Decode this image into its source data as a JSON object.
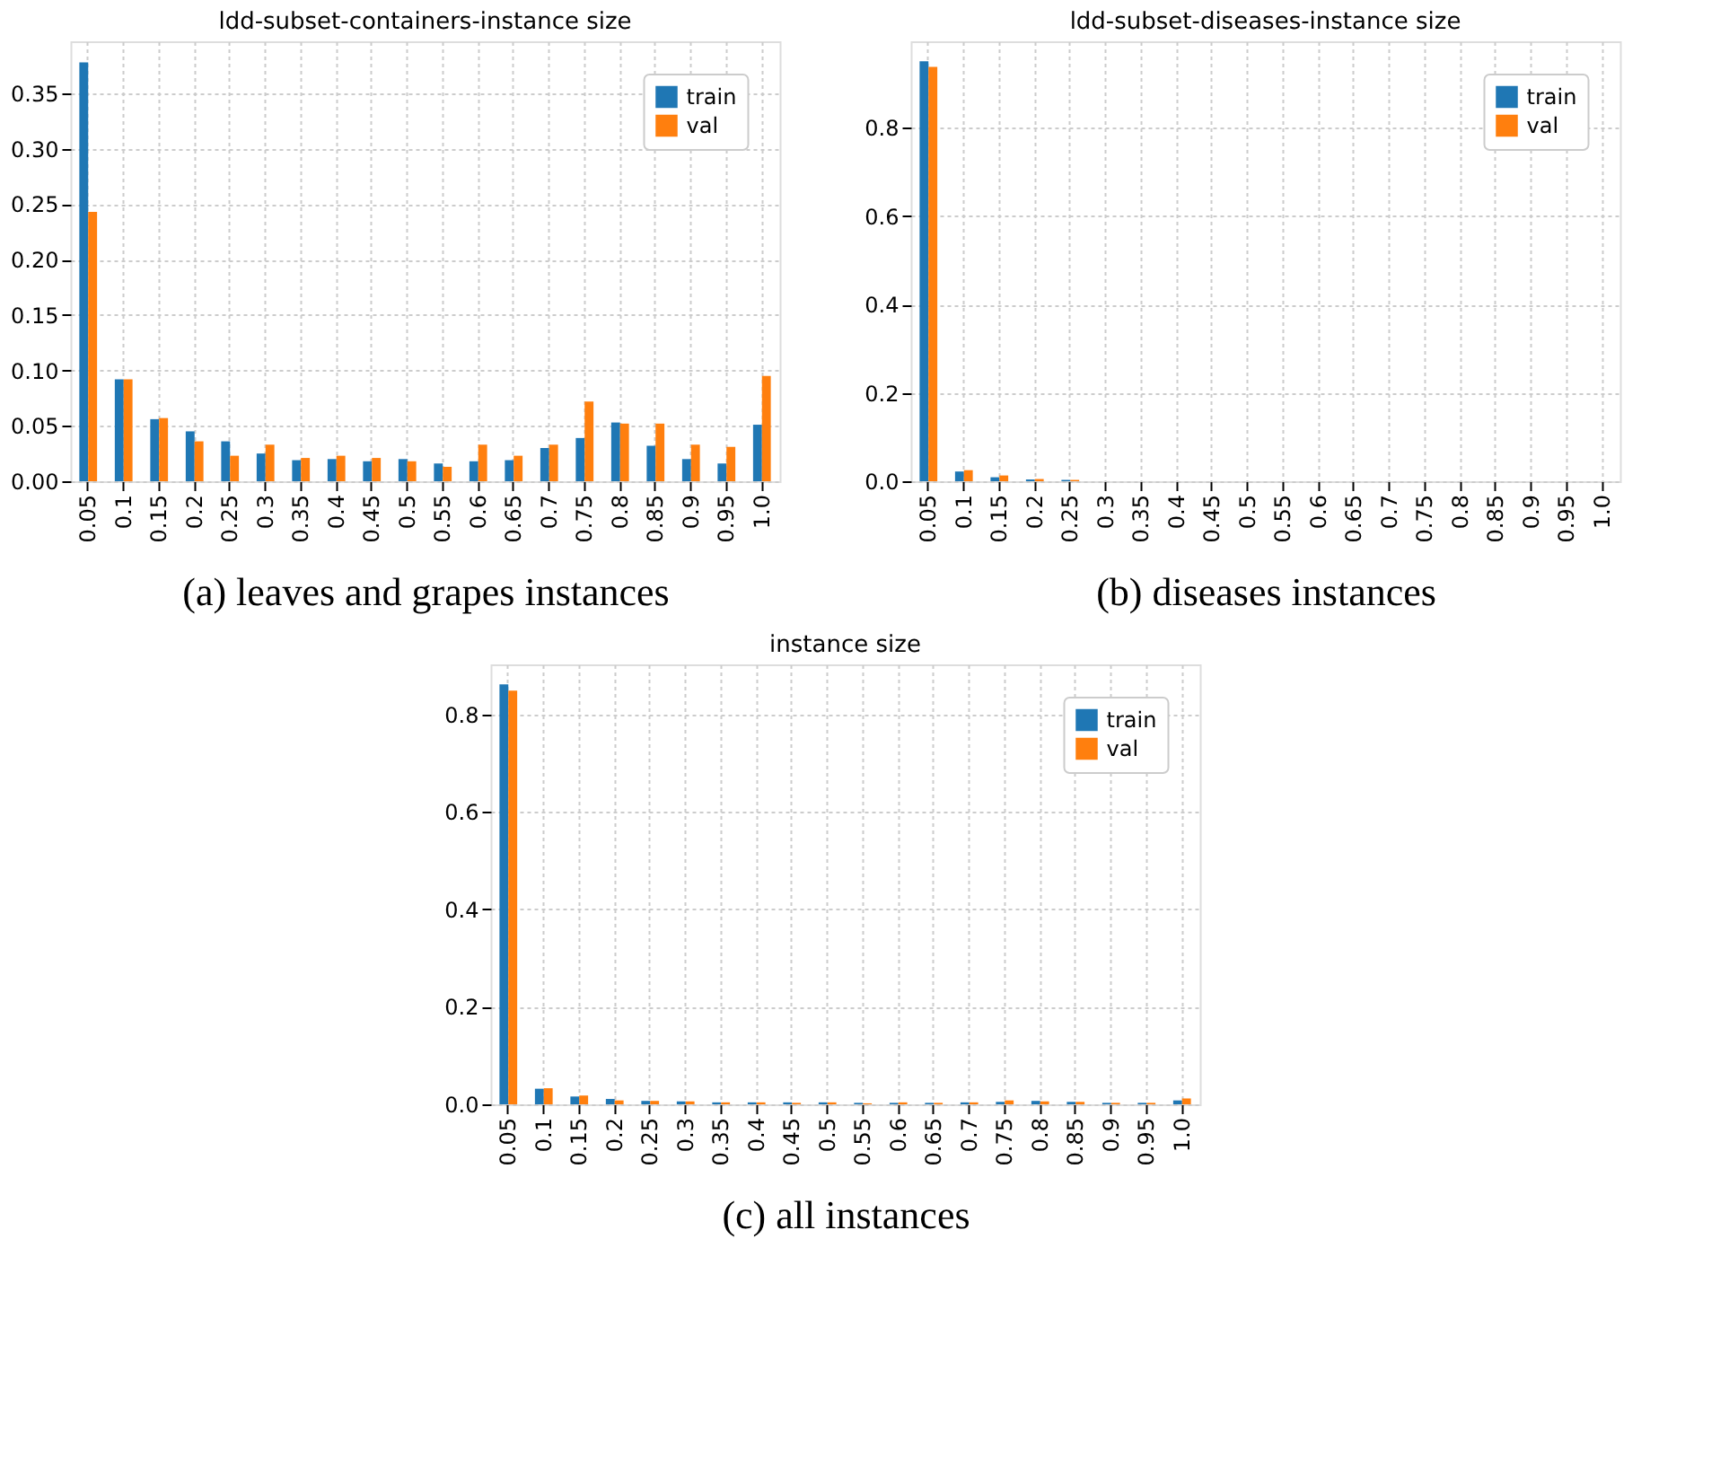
{
  "chart_data": [
    {
      "type": "bar",
      "title": "ldd-subset-containers-instance size",
      "annotations": [
        "(a) leaves and grapes instances"
      ],
      "categories": [
        "0.05",
        "0.1",
        "0.15",
        "0.2",
        "0.25",
        "0.3",
        "0.35",
        "0.4",
        "0.45",
        "0.5",
        "0.55",
        "0.6",
        "0.65",
        "0.7",
        "0.75",
        "0.8",
        "0.85",
        "0.9",
        "0.95",
        "1.0"
      ],
      "series": [
        {
          "name": "train",
          "color": "#1f77b4",
          "values": [
            0.378,
            0.092,
            0.056,
            0.045,
            0.036,
            0.025,
            0.019,
            0.02,
            0.018,
            0.02,
            0.016,
            0.018,
            0.019,
            0.03,
            0.039,
            0.053,
            0.032,
            0.02,
            0.016,
            0.051
          ]
        },
        {
          "name": "val",
          "color": "#ff7f0e",
          "values": [
            0.243,
            0.092,
            0.057,
            0.036,
            0.023,
            0.033,
            0.021,
            0.023,
            0.021,
            0.018,
            0.013,
            0.033,
            0.023,
            0.033,
            0.072,
            0.052,
            0.052,
            0.033,
            0.031,
            0.095
          ]
        }
      ],
      "ylim": [
        0,
        0.397
      ],
      "yticks": [
        {
          "value": 0,
          "label": "0.00"
        },
        {
          "value": 0.05,
          "label": "0.05"
        },
        {
          "value": 0.1,
          "label": "0.10"
        },
        {
          "value": 0.15,
          "label": "0.15"
        },
        {
          "value": 0.2,
          "label": "0.20"
        },
        {
          "value": 0.25,
          "label": "0.25"
        },
        {
          "value": 0.3,
          "label": "0.30"
        },
        {
          "value": 0.35,
          "label": "0.35"
        }
      ],
      "grid": true,
      "legend": "top right"
    },
    {
      "type": "bar",
      "title": "ldd-subset-diseases-instance size",
      "annotations": [
        "(b) diseases instances"
      ],
      "categories": [
        "0.05",
        "0.1",
        "0.15",
        "0.2",
        "0.25",
        "0.3",
        "0.35",
        "0.4",
        "0.45",
        "0.5",
        "0.55",
        "0.6",
        "0.65",
        "0.7",
        "0.75",
        "0.8",
        "0.85",
        "0.9",
        "0.95",
        "1.0"
      ],
      "series": [
        {
          "name": "train",
          "color": "#1f77b4",
          "values": [
            0.95,
            0.022,
            0.009,
            0.004,
            0.003,
            0,
            0,
            0,
            0,
            0,
            0,
            0,
            0,
            0,
            0,
            0,
            0,
            0,
            0,
            0
          ]
        },
        {
          "name": "val",
          "color": "#ff7f0e",
          "values": [
            0.937,
            0.025,
            0.013,
            0.005,
            0.003,
            0,
            0,
            0,
            0,
            0,
            0,
            0,
            0,
            0,
            0,
            0,
            0,
            0,
            0,
            0
          ]
        }
      ],
      "ylim": [
        0,
        0.995
      ],
      "yticks": [
        {
          "value": 0,
          "label": "0.0"
        },
        {
          "value": 0.2,
          "label": "0.2"
        },
        {
          "value": 0.4,
          "label": "0.4"
        },
        {
          "value": 0.6,
          "label": "0.6"
        },
        {
          "value": 0.8,
          "label": "0.8"
        }
      ],
      "grid": true,
      "legend": "top right"
    },
    {
      "type": "bar",
      "title": "instance size",
      "annotations": [
        "(c) all instances"
      ],
      "categories": [
        "0.05",
        "0.1",
        "0.15",
        "0.2",
        "0.25",
        "0.3",
        "0.35",
        "0.4",
        "0.45",
        "0.5",
        "0.55",
        "0.6",
        "0.65",
        "0.7",
        "0.75",
        "0.8",
        "0.85",
        "0.9",
        "0.95",
        "1.0"
      ],
      "series": [
        {
          "name": "train",
          "color": "#1f77b4",
          "values": [
            0.862,
            0.032,
            0.016,
            0.011,
            0.007,
            0.006,
            0.004,
            0.004,
            0.004,
            0.004,
            0.003,
            0.003,
            0.003,
            0.004,
            0.005,
            0.007,
            0.005,
            0.003,
            0.003,
            0.008
          ]
        },
        {
          "name": "val",
          "color": "#ff7f0e",
          "values": [
            0.849,
            0.033,
            0.018,
            0.008,
            0.007,
            0.006,
            0.004,
            0.004,
            0.003,
            0.004,
            0.002,
            0.004,
            0.003,
            0.004,
            0.008,
            0.006,
            0.005,
            0.003,
            0.003,
            0.012
          ]
        }
      ],
      "ylim": [
        0,
        0.903
      ],
      "yticks": [
        {
          "value": 0,
          "label": "0.0"
        },
        {
          "value": 0.2,
          "label": "0.2"
        },
        {
          "value": 0.4,
          "label": "0.4"
        },
        {
          "value": 0.6,
          "label": "0.6"
        },
        {
          "value": 0.8,
          "label": "0.8"
        }
      ],
      "grid": true,
      "legend": "top right"
    }
  ]
}
